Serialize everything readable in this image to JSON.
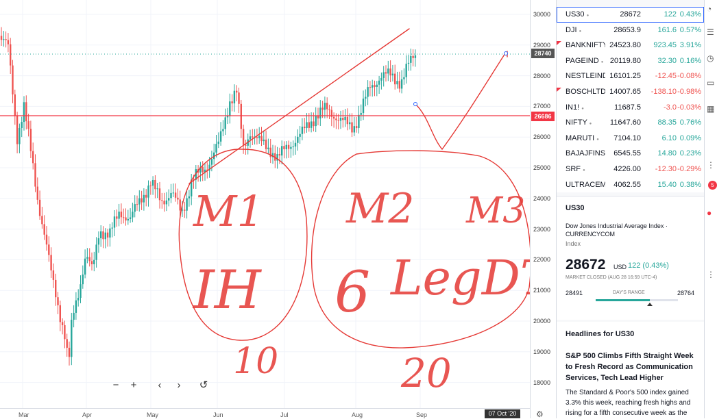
{
  "chart": {
    "y_ticks": [
      "30000",
      "29000",
      "28000",
      "27000",
      "26000",
      "25000",
      "24000",
      "23000",
      "22000",
      "21000",
      "20000",
      "19000",
      "18000"
    ],
    "x_months": [
      "Mar",
      "Apr",
      "May",
      "Jun",
      "Jul",
      "Aug",
      "Sep"
    ],
    "current_price_label": "28740",
    "horizontal_line_label": "26686",
    "crosshair_date": "07 Oct '20",
    "colors": {
      "up": "#26a69a",
      "down": "#ef5350",
      "line": "#f23645",
      "ink": "#e53935"
    },
    "annotations": [
      {
        "text": "M1"
      },
      {
        "text": "IH"
      },
      {
        "text": "10"
      },
      {
        "text": "M2"
      },
      {
        "text": "M3"
      },
      {
        "text": "6"
      },
      {
        "text": "LegDT"
      },
      {
        "text": "20"
      }
    ]
  },
  "toolbar": {
    "zoom_out": "−",
    "zoom_in": "+",
    "scroll_left": "‹",
    "scroll_right": "›",
    "reset": "↺"
  },
  "watchlist": [
    {
      "symbol": "US30",
      "last": "28672",
      "change": "122",
      "percent": "0.43%",
      "dir": "up",
      "selected": true,
      "flag": false
    },
    {
      "symbol": "DJI",
      "last": "28653.9",
      "change": "161.6",
      "percent": "0.57%",
      "dir": "up",
      "selected": false,
      "flag": false
    },
    {
      "symbol": "BANKNIFTY",
      "last": "24523.80",
      "change": "923.45",
      "percent": "3.91%",
      "dir": "up",
      "selected": false,
      "flag": true
    },
    {
      "symbol": "PAGEIND",
      "last": "20119.80",
      "change": "32.30",
      "percent": "0.16%",
      "dir": "up",
      "selected": false,
      "flag": false
    },
    {
      "symbol": "NESTLEIND",
      "last": "16101.25",
      "change": "-12.45",
      "percent": "-0.08%",
      "dir": "down",
      "selected": false,
      "flag": false
    },
    {
      "symbol": "BOSCHLTD",
      "last": "14007.65",
      "change": "-138.10",
      "percent": "-0.98%",
      "dir": "down",
      "selected": false,
      "flag": true
    },
    {
      "symbol": "IN1!",
      "last": "11687.5",
      "change": "-3.0",
      "percent": "-0.03%",
      "dir": "down",
      "selected": false,
      "flag": false
    },
    {
      "symbol": "NIFTY",
      "last": "11647.60",
      "change": "88.35",
      "percent": "0.76%",
      "dir": "up",
      "selected": false,
      "flag": false
    },
    {
      "symbol": "MARUTI",
      "last": "7104.10",
      "change": "6.10",
      "percent": "0.09%",
      "dir": "up",
      "selected": false,
      "flag": false
    },
    {
      "symbol": "BAJAJFINS'",
      "last": "6545.55",
      "change": "14.80",
      "percent": "0.23%",
      "dir": "up",
      "selected": false,
      "flag": false
    },
    {
      "symbol": "SRF",
      "last": "4226.00",
      "change": "-12.30",
      "percent": "-0.29%",
      "dir": "down",
      "selected": false,
      "flag": false
    },
    {
      "symbol": "ULTRACEM",
      "last": "4062.55",
      "change": "15.40",
      "percent": "0.38%",
      "dir": "up",
      "selected": false,
      "flag": false
    }
  ],
  "details": {
    "symbol": "US30",
    "name": "Dow Jones Industrial Average Index  ·  CURRENCYCOM",
    "type": "Index",
    "price": "28672",
    "currency": "USD",
    "change": "122 (0.43%)",
    "status": "MARKET CLOSED  (AUG 28 16:59 UTC-4)",
    "range_low": "28491",
    "range_label": "DAY'S RANGE",
    "range_high": "28764",
    "range_position": 0.66
  },
  "news": {
    "heading": "Headlines for US30",
    "title": "S&P 500 Climbs Fifth Straight Week to Fresh Record as Communication Services, Tech Lead Higher",
    "body": "The Standard & Poor's 500 index gained 3.3% this week, reaching fresh highs and rising for a fifth consecutive week as the"
  },
  "right_toolbar_icons": [
    "user-icon",
    "list-icon",
    "clock-icon",
    "chat-icon",
    "calendar-icon",
    "bell-icon"
  ],
  "notification_count": "5"
}
